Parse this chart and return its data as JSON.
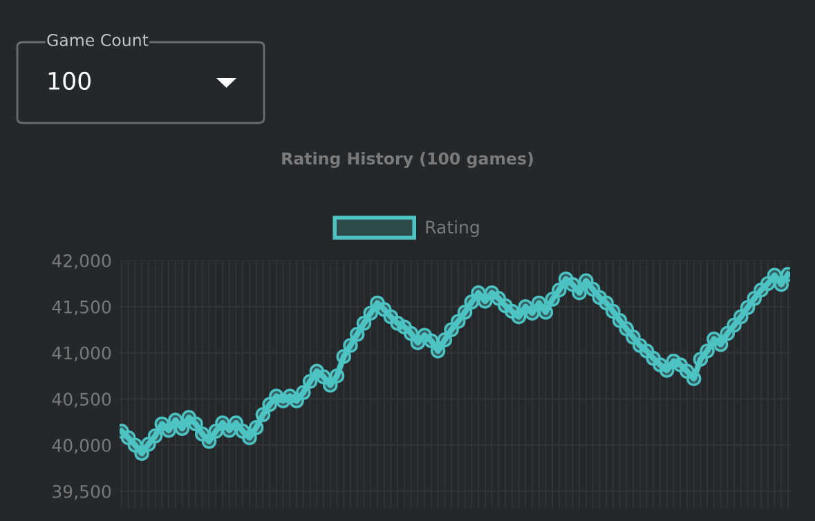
{
  "chart_data": {
    "type": "line",
    "title": "Rating History (100 games)",
    "annotations": [
      "Game Count",
      "100"
    ],
    "categories": [
      null,
      null,
      null,
      null,
      null,
      null,
      null,
      null,
      null,
      null,
      null,
      null,
      null,
      null,
      null,
      null,
      null,
      null,
      null,
      null,
      null,
      null,
      null,
      null,
      null,
      null,
      null,
      null,
      null,
      null,
      null,
      null,
      null,
      null,
      null,
      null,
      null,
      null,
      null,
      null,
      null,
      null,
      null,
      null,
      null,
      null,
      null,
      null,
      null,
      null,
      null,
      null,
      null,
      null,
      null,
      null,
      null,
      null,
      null,
      null,
      null,
      null,
      null,
      null,
      null,
      null,
      null,
      null,
      null,
      null,
      null,
      null,
      null,
      null,
      null,
      null,
      null,
      null,
      null,
      null,
      null,
      null,
      null,
      null,
      null,
      null,
      null,
      null,
      null,
      null,
      null,
      null,
      null,
      null,
      null,
      null,
      null,
      null,
      null,
      null
    ],
    "series": [
      {
        "name": "Rating",
        "color": "#4dc3c3",
        "values": [
          40150,
          40080,
          40000,
          39910,
          40010,
          40100,
          40230,
          40160,
          40270,
          40180,
          40300,
          40230,
          40120,
          40040,
          40150,
          40240,
          40160,
          40240,
          40150,
          40080,
          40190,
          40330,
          40440,
          40530,
          40480,
          40530,
          40480,
          40570,
          40690,
          40800,
          40740,
          40650,
          40750,
          40960,
          41080,
          41200,
          41320,
          41430,
          41540,
          41470,
          41390,
          41320,
          41280,
          41210,
          41110,
          41190,
          41130,
          41020,
          41140,
          41250,
          41340,
          41440,
          41550,
          41650,
          41560,
          41650,
          41590,
          41510,
          41450,
          41390,
          41500,
          41430,
          41540,
          41440,
          41580,
          41680,
          41800,
          41740,
          41650,
          41780,
          41690,
          41600,
          41540,
          41450,
          41350,
          41260,
          41170,
          41080,
          41020,
          40940,
          40870,
          40810,
          40910,
          40870,
          40800,
          40720,
          40930,
          41020,
          41150,
          41090,
          41210,
          41300,
          41390,
          41490,
          41590,
          41680,
          41750,
          41840,
          41740,
          41850
        ]
      }
    ],
    "ylim": [
      39320,
      42000
    ],
    "yticks": [
      {
        "value": 39500,
        "label": "39,500"
      },
      {
        "value": 40000,
        "label": "40,000"
      },
      {
        "value": 40500,
        "label": "40,500"
      },
      {
        "value": 41000,
        "label": "41,000"
      },
      {
        "value": 41500,
        "label": "41,500"
      },
      {
        "value": 42000,
        "label": "42,000"
      }
    ],
    "tick_labels": "y",
    "grid": true,
    "legend": "top",
    "marker": "circle",
    "line_style": "solid"
  }
}
